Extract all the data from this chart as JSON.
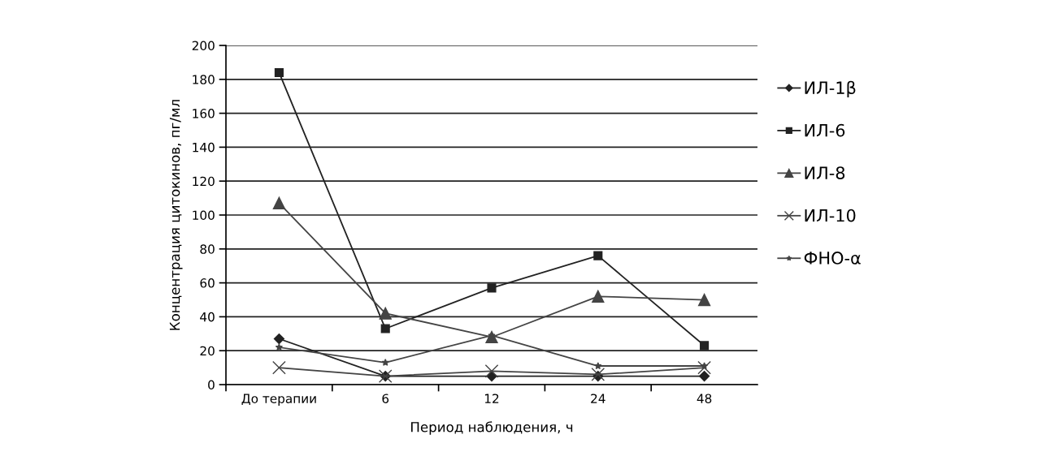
{
  "chart_data": {
    "type": "line",
    "xlabel": "Период наблюдения, ч",
    "ylabel": "Концентрация цитокинов, пг/мл",
    "categories": [
      "До терапии",
      "6",
      "12",
      "24",
      "48"
    ],
    "series": [
      {
        "name": "ИЛ-1β",
        "color": "#222222",
        "marker": "diamond",
        "values": [
          27,
          5,
          5,
          5,
          5
        ]
      },
      {
        "name": "ИЛ-6",
        "color": "#222222",
        "marker": "square",
        "values": [
          184,
          33,
          57,
          76,
          23
        ]
      },
      {
        "name": "ИЛ-8",
        "color": "#444444",
        "marker": "triangle",
        "values": [
          107,
          42,
          28,
          52,
          50
        ]
      },
      {
        "name": "ИЛ-10",
        "color": "#444444",
        "marker": "cross",
        "values": [
          10,
          5,
          8,
          6,
          10
        ]
      },
      {
        "name": "ФНО-α",
        "color": "#444444",
        "marker": "star",
        "values": [
          22,
          13,
          29,
          11,
          11
        ]
      }
    ],
    "ylim": [
      0,
      200
    ],
    "yticks": [
      0,
      20,
      40,
      60,
      80,
      100,
      120,
      140,
      160,
      180,
      200
    ],
    "grid": "y",
    "legend": "right"
  }
}
